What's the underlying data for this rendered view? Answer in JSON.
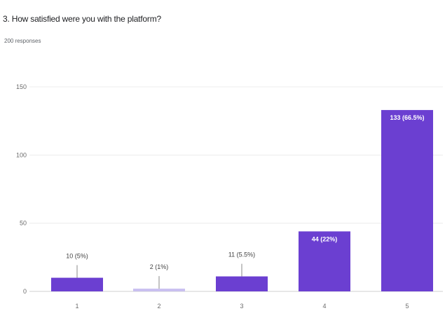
{
  "question": {
    "title": "3. How satisfied were you with the platform?",
    "responses": "200 responses"
  },
  "chart_data": {
    "type": "bar",
    "categories": [
      "1",
      "2",
      "3",
      "4",
      "5"
    ],
    "values": [
      10,
      2,
      11,
      44,
      133
    ],
    "data_labels": [
      "10 (5%)",
      "2 (1%)",
      "11 (5.5%)",
      "44 (22%)",
      "133 (66.5%)"
    ],
    "title": "3. How satisfied were you with the platform?",
    "xlabel": "",
    "ylabel": "",
    "ylim": [
      0,
      150
    ],
    "yticks": [
      0,
      50,
      100,
      150
    ],
    "grid": true,
    "colors": {
      "bar": "#6b3fd1",
      "bar_light": "#c9bff0",
      "grid": "#ececec",
      "axis": "#cfcfcf",
      "error": "#8a8a8a"
    }
  }
}
